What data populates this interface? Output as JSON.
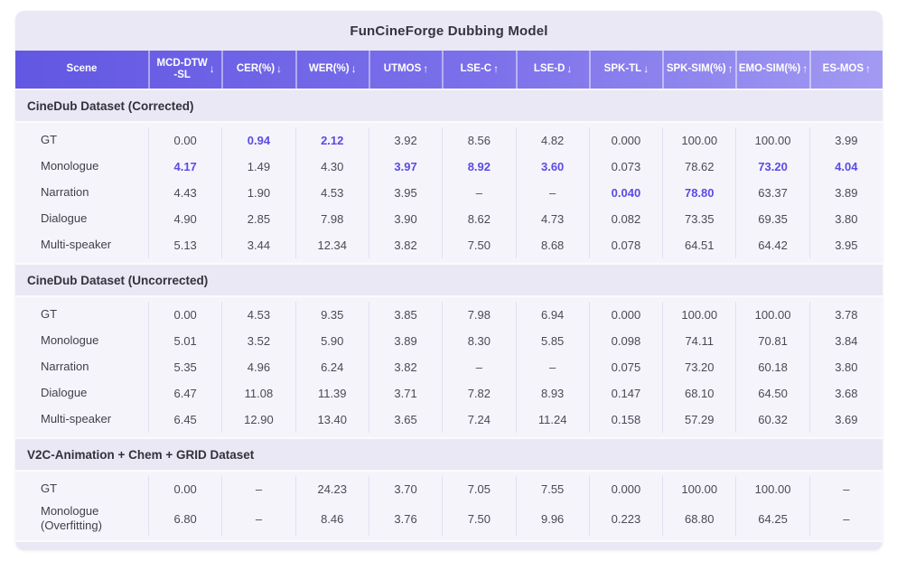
{
  "title": "FunCineForge Dubbing Model",
  "colors": {
    "card_bg": "#e9e8f4",
    "header_gradient_left": "#6257e2",
    "header_gradient_right": "#a29af2",
    "header_text": "#ffffff",
    "data_block_bg": "#f5f4fb",
    "normal_text": "#4a4a55",
    "highlight_text": "#5a4be4",
    "section_text": "#33323c"
  },
  "chart_data": {
    "type": "table",
    "title": "FunCineForge Dubbing Model",
    "columns": [
      {
        "key": "scene",
        "label": "Scene",
        "arrow": ""
      },
      {
        "key": "mcd",
        "label": "MCD-DTW\n-SL",
        "arrow": "↓"
      },
      {
        "key": "cer",
        "label": "CER(%)",
        "arrow": "↓"
      },
      {
        "key": "wer",
        "label": "WER(%)",
        "arrow": "↓"
      },
      {
        "key": "utmos",
        "label": "UTMOS",
        "arrow": "↑"
      },
      {
        "key": "lsec",
        "label": "LSE-C",
        "arrow": "↑"
      },
      {
        "key": "lsed",
        "label": "LSE-D",
        "arrow": "↓"
      },
      {
        "key": "spktl",
        "label": "SPK-TL",
        "arrow": "↓"
      },
      {
        "key": "spksim",
        "label": "SPK-SIM(%)",
        "arrow": "↑"
      },
      {
        "key": "emosim",
        "label": "EMO-SIM(%)",
        "arrow": "↑"
      },
      {
        "key": "esmos",
        "label": "ES-MOS",
        "arrow": "↑"
      }
    ],
    "sections": [
      {
        "title": "CineDub Dataset (Corrected)",
        "rows": [
          {
            "scene": "GT",
            "values": [
              "0.00",
              "0.94",
              "2.12",
              "3.92",
              "8.56",
              "4.82",
              "0.000",
              "100.00",
              "100.00",
              "3.99"
            ],
            "highlight": [
              1,
              2
            ]
          },
          {
            "scene": "Monologue",
            "values": [
              "4.17",
              "1.49",
              "4.30",
              "3.97",
              "8.92",
              "3.60",
              "0.073",
              "78.62",
              "73.20",
              "4.04"
            ],
            "highlight": [
              0,
              3,
              4,
              5,
              8,
              9
            ]
          },
          {
            "scene": "Narration",
            "values": [
              "4.43",
              "1.90",
              "4.53",
              "3.95",
              "–",
              "–",
              "0.040",
              "78.80",
              "63.37",
              "3.89"
            ],
            "highlight": [
              6,
              7
            ]
          },
          {
            "scene": "Dialogue",
            "values": [
              "4.90",
              "2.85",
              "7.98",
              "3.90",
              "8.62",
              "4.73",
              "0.082",
              "73.35",
              "69.35",
              "3.80"
            ],
            "highlight": []
          },
          {
            "scene": "Multi-speaker",
            "values": [
              "5.13",
              "3.44",
              "12.34",
              "3.82",
              "7.50",
              "8.68",
              "0.078",
              "64.51",
              "64.42",
              "3.95"
            ],
            "highlight": []
          }
        ]
      },
      {
        "title": "CineDub Dataset (Uncorrected)",
        "rows": [
          {
            "scene": "GT",
            "values": [
              "0.00",
              "4.53",
              "9.35",
              "3.85",
              "7.98",
              "6.94",
              "0.000",
              "100.00",
              "100.00",
              "3.78"
            ],
            "highlight": []
          },
          {
            "scene": "Monologue",
            "values": [
              "5.01",
              "3.52",
              "5.90",
              "3.89",
              "8.30",
              "5.85",
              "0.098",
              "74.11",
              "70.81",
              "3.84"
            ],
            "highlight": []
          },
          {
            "scene": "Narration",
            "values": [
              "5.35",
              "4.96",
              "6.24",
              "3.82",
              "–",
              "–",
              "0.075",
              "73.20",
              "60.18",
              "3.80"
            ],
            "highlight": []
          },
          {
            "scene": "Dialogue",
            "values": [
              "6.47",
              "11.08",
              "11.39",
              "3.71",
              "7.82",
              "8.93",
              "0.147",
              "68.10",
              "64.50",
              "3.68"
            ],
            "highlight": []
          },
          {
            "scene": "Multi-speaker",
            "values": [
              "6.45",
              "12.90",
              "13.40",
              "3.65",
              "7.24",
              "11.24",
              "0.158",
              "57.29",
              "60.32",
              "3.69"
            ],
            "highlight": []
          }
        ]
      },
      {
        "title": "V2C-Animation + Chem + GRID Dataset",
        "rows": [
          {
            "scene": "GT",
            "values": [
              "0.00",
              "–",
              "24.23",
              "3.70",
              "7.05",
              "7.55",
              "0.000",
              "100.00",
              "100.00",
              "–"
            ],
            "highlight": []
          },
          {
            "scene": "Monologue\n(Overfitting)",
            "values": [
              "6.80",
              "–",
              "8.46",
              "3.76",
              "7.50",
              "9.96",
              "0.223",
              "68.80",
              "64.25",
              "–"
            ],
            "highlight": []
          }
        ]
      }
    ]
  }
}
